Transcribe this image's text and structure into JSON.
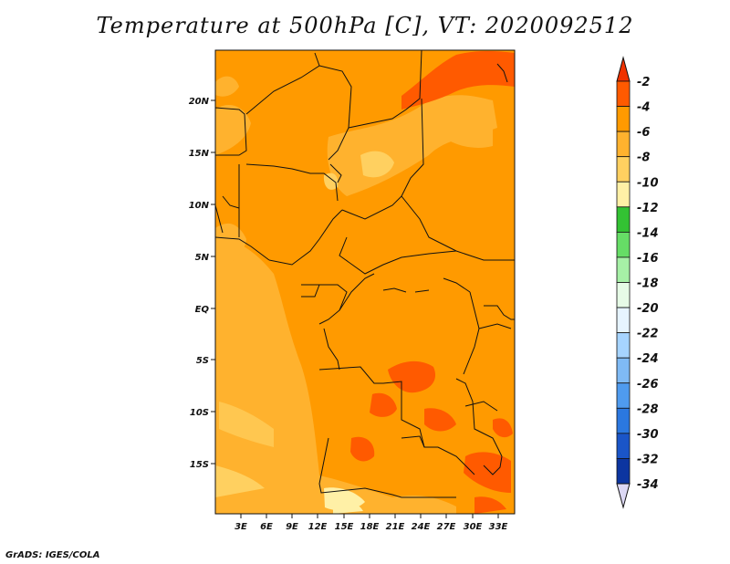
{
  "title": "Temperature at 500hPa [C], VT: 2020092512",
  "credit": "GrADS: IGES/COLA",
  "map": {
    "lat_labels": [
      "20N",
      "15N",
      "10N",
      "5N",
      "EQ",
      "5S",
      "10S",
      "15S"
    ],
    "lon_labels": [
      "3E",
      "6E",
      "9E",
      "12E",
      "15E",
      "18E",
      "21E",
      "24E",
      "27E",
      "30E",
      "33E"
    ]
  },
  "colorbar": {
    "levels": [
      "-2",
      "-4",
      "-6",
      "-8",
      "-10",
      "-12",
      "-14",
      "-16",
      "-18",
      "-20",
      "-22",
      "-24",
      "-26",
      "-28",
      "-30",
      "-32",
      "-34"
    ],
    "colors": [
      "#ff5a00",
      "#ff9a00",
      "#ffb22e",
      "#ffd060",
      "#fff0a6",
      "#33c233",
      "#66dd66",
      "#a6f0a6",
      "#e6fbe6",
      "#e6f4ff",
      "#a6d4ff",
      "#7fbaf5",
      "#4f9bef",
      "#2b78e0",
      "#1a55c8",
      "#0c35a0",
      "#06125e",
      "#dcd8f4"
    ],
    "top_arrow_color": "#f03200"
  }
}
